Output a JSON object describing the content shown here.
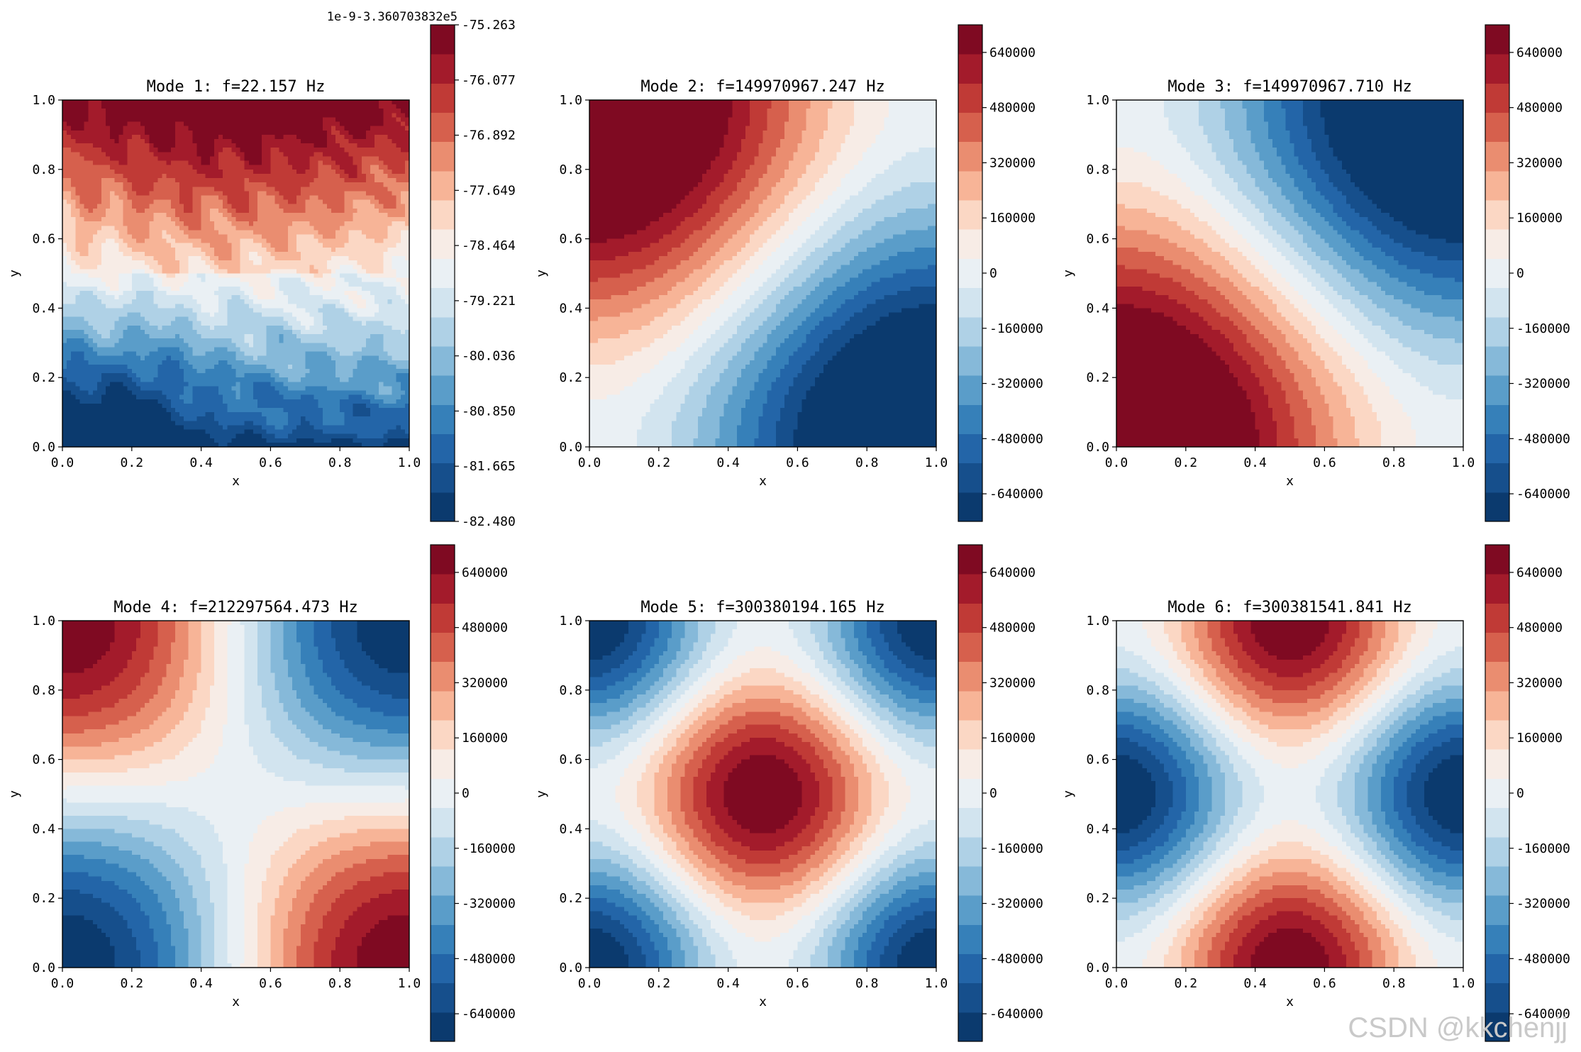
{
  "figure": {
    "watermark": "CSDN @kkchenjj",
    "colormap_colors": [
      "#0b3a6e",
      "#164f8c",
      "#2365a8",
      "#3680b9",
      "#5a9dc9",
      "#86b9d9",
      "#afd1e6",
      "#d2e4ef",
      "#eaf0f4",
      "#f7ece6",
      "#fbd7c4",
      "#f7b497",
      "#ea8d70",
      "#d6604d",
      "#c03a36",
      "#a31b2b",
      "#7f0a22"
    ]
  },
  "chart_data": [
    {
      "type": "heatmap",
      "title": "Mode 1: f=22.157 Hz",
      "xlabel": "x",
      "ylabel": "y",
      "xlim": [
        0.0,
        1.0
      ],
      "ylim": [
        0.0,
        1.0
      ],
      "xticks": [
        "0.0",
        "0.2",
        "0.4",
        "0.6",
        "0.8",
        "1.0"
      ],
      "yticks": [
        "0.0",
        "0.2",
        "0.4",
        "0.6",
        "0.8",
        "1.0"
      ],
      "field": "mode1",
      "colorbar": {
        "min": -82.48,
        "max": -75.263,
        "ticks": [
          "-75.263",
          "-76.077",
          "-76.892",
          "-77.649",
          "-78.464",
          "-79.221",
          "-80.036",
          "-80.850",
          "-81.665",
          "-82.480"
        ],
        "offset_text": "1e-9-3.360703832e5"
      }
    },
    {
      "type": "heatmap",
      "title": "Mode 2: f=149970967.247 Hz",
      "xlabel": "x",
      "ylabel": "y",
      "xlim": [
        0.0,
        1.0
      ],
      "ylim": [
        0.0,
        1.0
      ],
      "xticks": [
        "0.0",
        "0.2",
        "0.4",
        "0.6",
        "0.8",
        "1.0"
      ],
      "yticks": [
        "0.0",
        "0.2",
        "0.4",
        "0.6",
        "0.8",
        "1.0"
      ],
      "field": "mode2",
      "colorbar": {
        "min": -720000,
        "max": 720000,
        "ticks": [
          "640000",
          "480000",
          "320000",
          "160000",
          "0",
          "-160000",
          "-320000",
          "-480000",
          "-640000"
        ]
      }
    },
    {
      "type": "heatmap",
      "title": "Mode 3: f=149970967.710 Hz",
      "xlabel": "x",
      "ylabel": "y",
      "xlim": [
        0.0,
        1.0
      ],
      "ylim": [
        0.0,
        1.0
      ],
      "xticks": [
        "0.0",
        "0.2",
        "0.4",
        "0.6",
        "0.8",
        "1.0"
      ],
      "yticks": [
        "0.0",
        "0.2",
        "0.4",
        "0.6",
        "0.8",
        "1.0"
      ],
      "field": "mode3",
      "colorbar": {
        "min": -720000,
        "max": 720000,
        "ticks": [
          "640000",
          "480000",
          "320000",
          "160000",
          "0",
          "-160000",
          "-320000",
          "-480000",
          "-640000"
        ]
      }
    },
    {
      "type": "heatmap",
      "title": "Mode 4: f=212297564.473 Hz",
      "xlabel": "x",
      "ylabel": "y",
      "xlim": [
        0.0,
        1.0
      ],
      "ylim": [
        0.0,
        1.0
      ],
      "xticks": [
        "0.0",
        "0.2",
        "0.4",
        "0.6",
        "0.8",
        "1.0"
      ],
      "yticks": [
        "0.0",
        "0.2",
        "0.4",
        "0.6",
        "0.8",
        "1.0"
      ],
      "field": "mode4",
      "colorbar": {
        "min": -720000,
        "max": 720000,
        "ticks": [
          "640000",
          "480000",
          "320000",
          "160000",
          "0",
          "-160000",
          "-320000",
          "-480000",
          "-640000"
        ]
      }
    },
    {
      "type": "heatmap",
      "title": "Mode 5: f=300380194.165 Hz",
      "xlabel": "x",
      "ylabel": "y",
      "xlim": [
        0.0,
        1.0
      ],
      "ylim": [
        0.0,
        1.0
      ],
      "xticks": [
        "0.0",
        "0.2",
        "0.4",
        "0.6",
        "0.8",
        "1.0"
      ],
      "yticks": [
        "0.0",
        "0.2",
        "0.4",
        "0.6",
        "0.8",
        "1.0"
      ],
      "field": "mode5",
      "colorbar": {
        "min": -720000,
        "max": 720000,
        "ticks": [
          "640000",
          "480000",
          "320000",
          "160000",
          "0",
          "-160000",
          "-320000",
          "-480000",
          "-640000"
        ]
      }
    },
    {
      "type": "heatmap",
      "title": "Mode 6: f=300381541.841 Hz",
      "xlabel": "x",
      "ylabel": "y",
      "xlim": [
        0.0,
        1.0
      ],
      "ylim": [
        0.0,
        1.0
      ],
      "xticks": [
        "0.0",
        "0.2",
        "0.4",
        "0.6",
        "0.8",
        "1.0"
      ],
      "yticks": [
        "0.0",
        "0.2",
        "0.4",
        "0.6",
        "0.8",
        "1.0"
      ],
      "field": "mode6",
      "colorbar": {
        "min": -720000,
        "max": 720000,
        "ticks": [
          "640000",
          "480000",
          "320000",
          "160000",
          "0",
          "-160000",
          "-320000",
          "-480000",
          "-640000"
        ]
      }
    }
  ]
}
